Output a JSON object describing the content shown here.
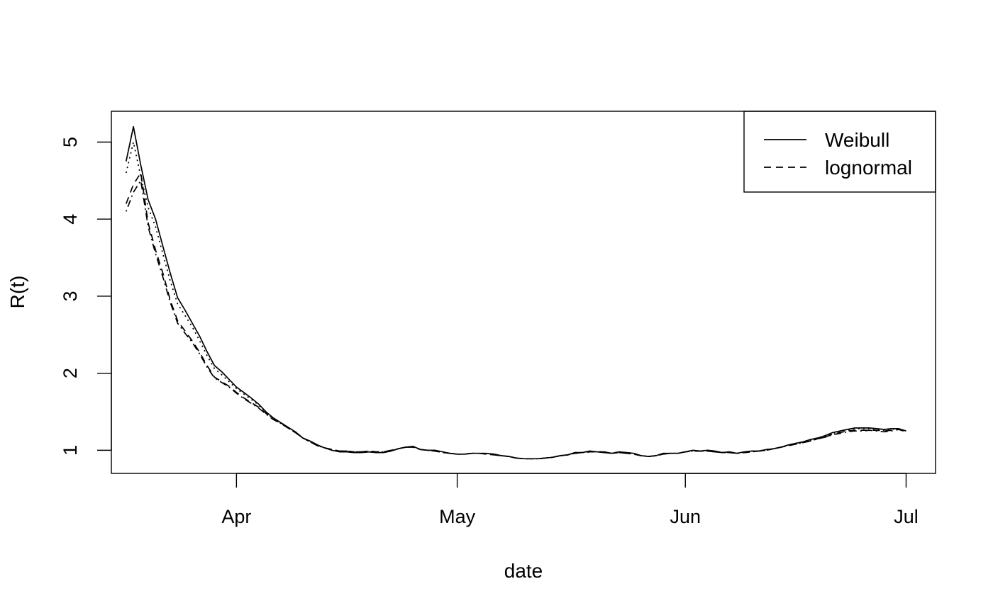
{
  "chart_data": {
    "type": "line",
    "title": "",
    "xlabel": "date",
    "ylabel": "R(t)",
    "x_start": "2020-03-17",
    "x_end": "2020-07-03",
    "xlim": [
      "2020-03-15",
      "2020-07-05"
    ],
    "ylim": [
      0.7,
      5.4
    ],
    "x_ticks": [
      {
        "date": "2020-04-01",
        "label": "Apr"
      },
      {
        "date": "2020-05-01",
        "label": "May"
      },
      {
        "date": "2020-06-01",
        "label": "Jun"
      },
      {
        "date": "2020-07-01",
        "label": "Jul"
      }
    ],
    "y_ticks": [
      1,
      2,
      3,
      4,
      5
    ],
    "grid": false,
    "legend": {
      "position": "top-right",
      "entries": [
        {
          "label": "Weibull",
          "style": "solid"
        },
        {
          "label": "lognormal",
          "style": "dashed"
        }
      ]
    },
    "series": [
      {
        "name": "Weibull",
        "dash": "solid",
        "values": [
          4.75,
          5.2,
          4.7,
          4.25,
          4.0,
          3.65,
          3.3,
          2.98,
          2.82,
          2.65,
          2.48,
          2.28,
          2.1,
          2.02,
          1.92,
          1.82,
          1.75,
          1.68,
          1.6,
          1.5,
          1.42,
          1.36,
          1.3,
          1.24,
          1.16,
          1.12,
          1.07,
          1.03,
          1.0,
          0.98,
          0.98,
          0.97,
          0.97,
          0.98,
          0.97,
          0.97,
          0.99,
          1.02,
          1.04,
          1.05,
          1.01,
          1.0,
          1.0,
          0.98,
          0.96,
          0.95,
          0.95,
          0.96,
          0.96,
          0.96,
          0.95,
          0.93,
          0.92,
          0.9,
          0.89,
          0.89,
          0.89,
          0.9,
          0.91,
          0.93,
          0.94,
          0.97,
          0.97,
          0.99,
          0.98,
          0.98,
          0.96,
          0.98,
          0.97,
          0.96,
          0.93,
          0.92,
          0.93,
          0.96,
          0.96,
          0.96,
          0.98,
          1.0,
          0.99,
          1.0,
          0.99,
          0.97,
          0.98,
          0.96,
          0.98,
          0.99,
          0.99,
          1.01,
          1.02,
          1.04,
          1.07,
          1.09,
          1.11,
          1.14,
          1.16,
          1.19,
          1.23,
          1.25,
          1.27,
          1.29,
          1.29,
          1.29,
          1.28,
          1.27,
          1.28,
          1.28,
          1.25
        ]
      },
      {
        "name": "lognormal",
        "dash": "dashed",
        "values": [
          4.2,
          4.45,
          4.6,
          3.95,
          3.6,
          3.3,
          2.95,
          2.68,
          2.55,
          2.42,
          2.27,
          2.1,
          1.95,
          1.89,
          1.83,
          1.75,
          1.68,
          1.62,
          1.56,
          1.48,
          1.4,
          1.35,
          1.29,
          1.23,
          1.16,
          1.11,
          1.06,
          1.03,
          1.01,
          0.99,
          0.99,
          0.98,
          0.98,
          0.99,
          0.98,
          0.98,
          1.0,
          1.02,
          1.04,
          1.04,
          1.01,
          1.0,
          0.99,
          0.97,
          0.96,
          0.95,
          0.95,
          0.96,
          0.96,
          0.95,
          0.94,
          0.93,
          0.92,
          0.9,
          0.89,
          0.89,
          0.89,
          0.9,
          0.91,
          0.93,
          0.94,
          0.96,
          0.97,
          0.98,
          0.98,
          0.97,
          0.96,
          0.97,
          0.96,
          0.95,
          0.93,
          0.92,
          0.93,
          0.95,
          0.96,
          0.96,
          0.98,
          0.99,
          0.99,
          0.99,
          0.98,
          0.97,
          0.97,
          0.96,
          0.97,
          0.98,
          0.99,
          1.0,
          1.02,
          1.04,
          1.06,
          1.08,
          1.1,
          1.12,
          1.15,
          1.17,
          1.21,
          1.23,
          1.25,
          1.26,
          1.26,
          1.26,
          1.26,
          1.25,
          1.26,
          1.27,
          1.24
        ]
      },
      {
        "name": "",
        "dash": "dotted",
        "values": [
          4.6,
          5.0,
          4.55,
          4.15,
          3.9,
          3.55,
          3.2,
          2.9,
          2.75,
          2.6,
          2.42,
          2.23,
          2.06,
          1.98,
          1.89,
          1.8,
          1.73,
          1.66,
          1.59,
          1.49,
          1.41,
          1.36,
          1.3,
          1.24,
          1.16,
          1.11,
          1.07,
          1.03,
          1.0,
          0.99,
          0.98,
          0.97,
          0.97,
          0.98,
          0.97,
          0.97,
          0.99,
          1.02,
          1.04,
          1.05,
          1.01,
          1.0,
          1.0,
          0.98,
          0.96,
          0.95,
          0.95,
          0.96,
          0.96,
          0.96,
          0.95,
          0.93,
          0.92,
          0.9,
          0.89,
          0.89,
          0.89,
          0.9,
          0.91,
          0.93,
          0.94,
          0.97,
          0.97,
          0.99,
          0.98,
          0.98,
          0.96,
          0.98,
          0.97,
          0.96,
          0.93,
          0.92,
          0.93,
          0.96,
          0.96,
          0.96,
          0.98,
          1.0,
          0.99,
          1.0,
          0.99,
          0.97,
          0.98,
          0.96,
          0.98,
          0.99,
          0.99,
          1.01,
          1.02,
          1.04,
          1.07,
          1.09,
          1.11,
          1.13,
          1.16,
          1.18,
          1.22,
          1.24,
          1.26,
          1.28,
          1.28,
          1.28,
          1.27,
          1.26,
          1.27,
          1.28,
          1.25
        ]
      },
      {
        "name": "",
        "dash": "dotdash",
        "values": [
          4.1,
          4.35,
          4.5,
          3.9,
          3.55,
          3.25,
          2.92,
          2.65,
          2.52,
          2.4,
          2.25,
          2.08,
          1.94,
          1.88,
          1.82,
          1.74,
          1.67,
          1.61,
          1.55,
          1.47,
          1.4,
          1.35,
          1.29,
          1.23,
          1.16,
          1.11,
          1.06,
          1.03,
          1.01,
          0.99,
          0.99,
          0.98,
          0.98,
          0.99,
          0.98,
          0.98,
          1.0,
          1.02,
          1.04,
          1.04,
          1.01,
          1.0,
          0.99,
          0.97,
          0.96,
          0.95,
          0.95,
          0.96,
          0.96,
          0.95,
          0.94,
          0.93,
          0.92,
          0.9,
          0.89,
          0.89,
          0.89,
          0.9,
          0.91,
          0.93,
          0.94,
          0.96,
          0.97,
          0.98,
          0.98,
          0.97,
          0.96,
          0.97,
          0.96,
          0.95,
          0.93,
          0.92,
          0.93,
          0.95,
          0.96,
          0.96,
          0.98,
          0.99,
          0.99,
          0.99,
          0.98,
          0.97,
          0.97,
          0.96,
          0.97,
          0.98,
          0.99,
          1.0,
          1.02,
          1.04,
          1.06,
          1.08,
          1.1,
          1.12,
          1.15,
          1.17,
          1.2,
          1.22,
          1.24,
          1.25,
          1.25,
          1.26,
          1.25,
          1.24,
          1.25,
          1.27,
          1.24
        ]
      }
    ]
  }
}
